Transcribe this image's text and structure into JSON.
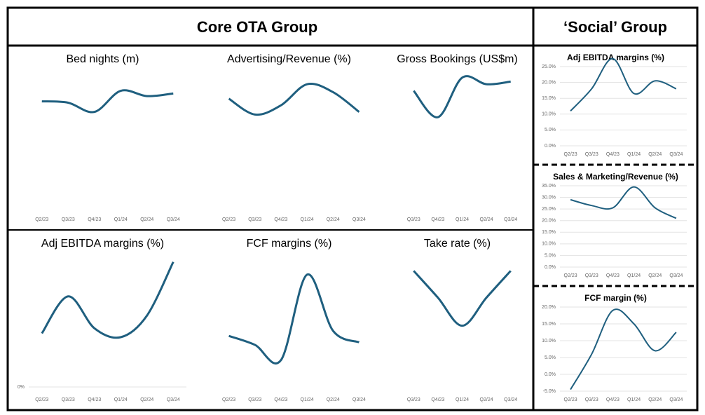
{
  "groups": [
    {
      "title": "Core OTA Group"
    },
    {
      "title": "‘Social’ Group"
    }
  ],
  "chart_data": [
    {
      "type": "line",
      "title": "Bed nights (m)",
      "categories": [
        "Q2/23",
        "Q3/23",
        "Q4/23",
        "Q1/24",
        "Q2/24",
        "Q3/24"
      ],
      "values": [
        80,
        79,
        72,
        88,
        84,
        86
      ],
      "ylim": [
        0,
        100
      ],
      "color": "#1f5f7f"
    },
    {
      "type": "line",
      "title": "Advertising/Revenue (%)",
      "categories": [
        "Q2/23",
        "Q3/23",
        "Q4/23",
        "Q1/24",
        "Q2/24",
        "Q3/24"
      ],
      "values": [
        82,
        70,
        77,
        93,
        87,
        72
      ],
      "ylim": [
        0,
        100
      ],
      "color": "#1f5f7f"
    },
    {
      "type": "line",
      "title": "Gross Bookings (US$m)",
      "categories": [
        "Q3/23",
        "Q4/23",
        "Q1/24",
        "Q2/24",
        "Q3/24"
      ],
      "values": [
        88,
        68,
        98,
        93,
        95
      ],
      "ylim": [
        0,
        100
      ],
      "color": "#1f5f7f"
    },
    {
      "type": "line",
      "title": "Adj EBITDA margins (%)",
      "categories": [
        "Q2/23",
        "Q3/23",
        "Q4/23",
        "Q1/24",
        "Q2/24",
        "Q3/24"
      ],
      "values": [
        42,
        71,
        46,
        39,
        56,
        98
      ],
      "ylim": [
        0,
        100
      ],
      "yticks": [
        {
          "value": 0,
          "label": "0%"
        }
      ],
      "color": "#1f5f7f"
    },
    {
      "type": "line",
      "title": "FCF margins (%)",
      "categories": [
        "Q2/23",
        "Q3/23",
        "Q4/23",
        "Q1/24",
        "Q2/24",
        "Q3/24"
      ],
      "values": [
        40,
        33,
        21,
        88,
        44,
        35
      ],
      "ylim": [
        0,
        100
      ],
      "color": "#1f5f7f"
    },
    {
      "type": "line",
      "title": "Take rate (%)",
      "categories": [
        "Q3/23",
        "Q4/23",
        "Q1/24",
        "Q2/24",
        "Q3/24"
      ],
      "values": [
        91,
        70,
        48,
        70,
        91
      ],
      "ylim": [
        0,
        100
      ],
      "color": "#1f5f7f"
    },
    {
      "type": "line",
      "title": "Adj EBITDA margins (%)",
      "categories": [
        "Q2/23",
        "Q3/23",
        "Q4/23",
        "Q1/24",
        "Q2/24",
        "Q3/24"
      ],
      "values": [
        11,
        18,
        27.5,
        16.5,
        20.5,
        18
      ],
      "ylim": [
        0,
        25
      ],
      "yticks": [
        {
          "value": 0,
          "label": "0.0%"
        },
        {
          "value": 5,
          "label": "5.0%"
        },
        {
          "value": 10,
          "label": "10.0%"
        },
        {
          "value": 15,
          "label": "15.0%"
        },
        {
          "value": 20,
          "label": "20.0%"
        },
        {
          "value": 25,
          "label": "25.0%"
        }
      ],
      "color": "#1f5f7f"
    },
    {
      "type": "line",
      "title": "Sales & Marketing/Revenue (%)",
      "categories": [
        "Q2/23",
        "Q3/23",
        "Q4/23",
        "Q1/24",
        "Q2/24",
        "Q3/24"
      ],
      "values": [
        29,
        26.5,
        25.5,
        34.5,
        25.5,
        21
      ],
      "ylim": [
        0,
        35
      ],
      "yticks": [
        {
          "value": 0,
          "label": "0.0%"
        },
        {
          "value": 5,
          "label": "5.0%"
        },
        {
          "value": 10,
          "label": "10.0%"
        },
        {
          "value": 15,
          "label": "15.0%"
        },
        {
          "value": 20,
          "label": "20.0%"
        },
        {
          "value": 25,
          "label": "25.0%"
        },
        {
          "value": 30,
          "label": "30.0%"
        },
        {
          "value": 35,
          "label": "35.0%"
        }
      ],
      "color": "#1f5f7f"
    },
    {
      "type": "line",
      "title": "FCF margin (%)",
      "categories": [
        "Q2/23",
        "Q3/23",
        "Q4/23",
        "Q1/24",
        "Q2/24",
        "Q3/24"
      ],
      "values": [
        -4.5,
        6,
        19,
        15,
        7,
        12.5
      ],
      "ylim": [
        -5,
        20
      ],
      "yticks": [
        {
          "value": -5,
          "label": "-5.0%"
        },
        {
          "value": 0,
          "label": "0.0%"
        },
        {
          "value": 5,
          "label": "5.0%"
        },
        {
          "value": 10,
          "label": "10.0%"
        },
        {
          "value": 15,
          "label": "15.0%"
        },
        {
          "value": 20,
          "label": "20.0%"
        }
      ],
      "color": "#1f5f7f"
    }
  ]
}
